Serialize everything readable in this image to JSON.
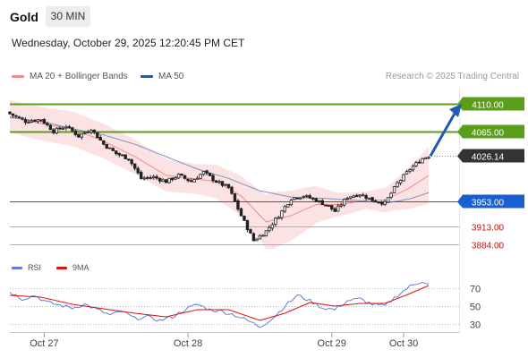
{
  "header": {
    "symbol": "Gold",
    "timeframe": "30 MIN",
    "datetime": "Wednesday, October 29, 2025 12:20:45 PM CET"
  },
  "legend": {
    "ma20_label": "MA 20 + Bollinger Bands",
    "ma20_color": "#f08a8a",
    "ma50_label": "MA 50",
    "ma50_color": "#2a5a9e",
    "credit": "Research © 2025 Trading Central"
  },
  "rsi_legend": {
    "rsi_label": "RSI",
    "rsi_color": "#5b7fd6",
    "ma9_label": "9MA",
    "ma9_color": "#e01010"
  },
  "chart_data": {
    "type": "candlestick",
    "price_range": [
      3868,
      4136
    ],
    "levels": [
      {
        "label": "4110.00",
        "value": 4110,
        "kind": "resistance",
        "color": "#5a9e1a"
      },
      {
        "label": "4065.00",
        "value": 4065,
        "kind": "resistance",
        "color": "#5a9e1a"
      },
      {
        "label": "4026.14",
        "value": 4026.14,
        "kind": "last",
        "color": "#333333"
      },
      {
        "label": "3953.00",
        "value": 3953,
        "kind": "pivot",
        "color": "#1a5fd1"
      },
      {
        "label": "3913.00",
        "value": 3913,
        "kind": "support",
        "color": "#cc1111"
      },
      {
        "label": "3884.00",
        "value": 3884,
        "kind": "support",
        "color": "#cc1111"
      }
    ],
    "x_ticks": [
      {
        "label": "Oct 27",
        "index": 11
      },
      {
        "label": "Oct 28",
        "index": 57
      },
      {
        "label": "Oct 29",
        "index": 103
      },
      {
        "label": "Oct 30",
        "index": 126
      }
    ],
    "price_anchors": [
      [
        0,
        4094
      ],
      [
        5,
        4082
      ],
      [
        10,
        4085
      ],
      [
        14,
        4066
      ],
      [
        18,
        4074
      ],
      [
        22,
        4058
      ],
      [
        26,
        4070
      ],
      [
        30,
        4045
      ],
      [
        34,
        4030
      ],
      [
        38,
        4022
      ],
      [
        42,
        3990
      ],
      [
        46,
        3992
      ],
      [
        50,
        3985
      ],
      [
        54,
        3995
      ],
      [
        58,
        3985
      ],
      [
        62,
        4000
      ],
      [
        66,
        3985
      ],
      [
        70,
        3975
      ],
      [
        74,
        3930
      ],
      [
        78,
        3890
      ],
      [
        82,
        3905
      ],
      [
        86,
        3930
      ],
      [
        90,
        3958
      ],
      [
        94,
        3962
      ],
      [
        98,
        3955
      ],
      [
        102,
        3945
      ],
      [
        104,
        3937
      ],
      [
        108,
        3960
      ],
      [
        112,
        3965
      ],
      [
        116,
        3955
      ],
      [
        120,
        3950
      ],
      [
        124,
        3982
      ],
      [
        128,
        4005
      ],
      [
        132,
        4022
      ],
      [
        134,
        4026.14
      ]
    ],
    "ma20_anchors": [
      [
        0,
        4090
      ],
      [
        10,
        4078
      ],
      [
        20,
        4070
      ],
      [
        30,
        4050
      ],
      [
        40,
        4025
      ],
      [
        50,
        3995
      ],
      [
        58,
        3990
      ],
      [
        66,
        3985
      ],
      [
        74,
        3962
      ],
      [
        82,
        3920
      ],
      [
        90,
        3930
      ],
      [
        98,
        3948
      ],
      [
        106,
        3948
      ],
      [
        114,
        3955
      ],
      [
        120,
        3955
      ],
      [
        128,
        3975
      ],
      [
        134,
        3995
      ]
    ],
    "bb_width_anchors": [
      [
        0,
        26
      ],
      [
        20,
        28
      ],
      [
        40,
        28
      ],
      [
        60,
        24
      ],
      [
        74,
        32
      ],
      [
        84,
        46
      ],
      [
        94,
        36
      ],
      [
        104,
        20
      ],
      [
        114,
        14
      ],
      [
        122,
        22
      ],
      [
        134,
        46
      ]
    ],
    "ma50_anchors": [
      [
        0,
        4088
      ],
      [
        10,
        4082
      ],
      [
        20,
        4070
      ],
      [
        30,
        4060
      ],
      [
        40,
        4045
      ],
      [
        50,
        4025
      ],
      [
        60,
        4005
      ],
      [
        70,
        3990
      ],
      [
        80,
        3970
      ],
      [
        90,
        3960
      ],
      [
        100,
        3958
      ],
      [
        110,
        3955
      ],
      [
        120,
        3950
      ],
      [
        128,
        3957
      ],
      [
        134,
        3967
      ]
    ],
    "projection": {
      "from": 4026.14,
      "to": 4110,
      "direction": "up"
    },
    "rsi": {
      "levels": [
        70,
        50,
        30
      ],
      "range": [
        20,
        82
      ],
      "rsi_anchors": [
        [
          0,
          66
        ],
        [
          4,
          58
        ],
        [
          8,
          62
        ],
        [
          12,
          54
        ],
        [
          16,
          51
        ],
        [
          20,
          48
        ],
        [
          24,
          52
        ],
        [
          28,
          46
        ],
        [
          32,
          40
        ],
        [
          36,
          44
        ],
        [
          40,
          36
        ],
        [
          44,
          38
        ],
        [
          48,
          34
        ],
        [
          52,
          38
        ],
        [
          56,
          46
        ],
        [
          60,
          52
        ],
        [
          64,
          46
        ],
        [
          68,
          44
        ],
        [
          72,
          40
        ],
        [
          76,
          34
        ],
        [
          80,
          27
        ],
        [
          84,
          36
        ],
        [
          88,
          50
        ],
        [
          92,
          62
        ],
        [
          96,
          56
        ],
        [
          100,
          48
        ],
        [
          104,
          46
        ],
        [
          108,
          56
        ],
        [
          112,
          58
        ],
        [
          116,
          52
        ],
        [
          120,
          50
        ],
        [
          124,
          62
        ],
        [
          128,
          72
        ],
        [
          132,
          78
        ],
        [
          134,
          74
        ]
      ],
      "ma9_anchors": [
        [
          0,
          62
        ],
        [
          10,
          60
        ],
        [
          20,
          52
        ],
        [
          30,
          47
        ],
        [
          40,
          42
        ],
        [
          50,
          38
        ],
        [
          60,
          46
        ],
        [
          70,
          46
        ],
        [
          80,
          34
        ],
        [
          88,
          42
        ],
        [
          96,
          54
        ],
        [
          104,
          50
        ],
        [
          112,
          53
        ],
        [
          120,
          53
        ],
        [
          128,
          64
        ],
        [
          134,
          73
        ]
      ]
    }
  }
}
